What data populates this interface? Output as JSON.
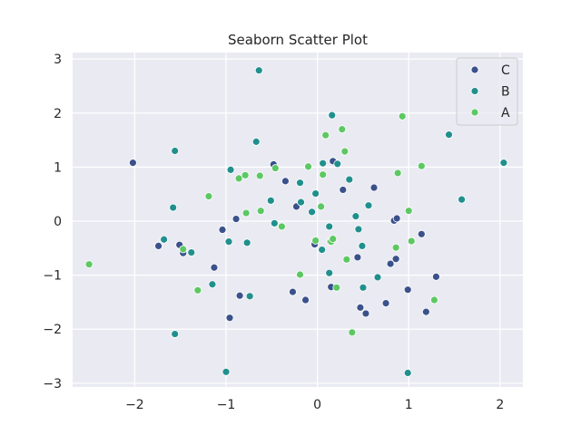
{
  "chart_data": {
    "type": "scatter",
    "title": "Seaborn Scatter Plot",
    "xlabel": "",
    "ylabel": "",
    "xlim": [
      -2.68,
      2.25
    ],
    "ylim": [
      -3.07,
      3.12
    ],
    "xticks": [
      -2,
      -1,
      0,
      1,
      2
    ],
    "yticks": [
      -3,
      -2,
      -1,
      0,
      1,
      2,
      3
    ],
    "xtick_labels": [
      "−2",
      "−1",
      "0",
      "1",
      "2"
    ],
    "ytick_labels": [
      "−3",
      "−2",
      "−1",
      "0",
      "1",
      "2",
      "3"
    ],
    "grid": true,
    "legend_position": "top-right",
    "series": [
      {
        "name": "C",
        "color": "#3b518b",
        "points": [
          [
            -2.02,
            1.08
          ],
          [
            -1.74,
            -0.46
          ],
          [
            -1.51,
            -0.44
          ],
          [
            -1.47,
            -0.59
          ],
          [
            -1.13,
            -0.86
          ],
          [
            -1.04,
            -0.16
          ],
          [
            -0.96,
            -1.79
          ],
          [
            -0.89,
            0.04
          ],
          [
            -0.85,
            -1.38
          ],
          [
            -0.48,
            1.05
          ],
          [
            -0.35,
            0.74
          ],
          [
            -0.27,
            -1.31
          ],
          [
            -0.23,
            0.27
          ],
          [
            -0.13,
            -1.46
          ],
          [
            -0.03,
            -0.43
          ],
          [
            0.14,
            -0.38
          ],
          [
            0.15,
            -1.22
          ],
          [
            0.17,
            1.11
          ],
          [
            0.28,
            0.58
          ],
          [
            0.44,
            -0.67
          ],
          [
            0.47,
            -1.6
          ],
          [
            0.53,
            -1.71
          ],
          [
            0.62,
            0.62
          ],
          [
            0.75,
            -1.52
          ],
          [
            0.8,
            -0.79
          ],
          [
            0.84,
            0.01
          ],
          [
            0.86,
            -0.7
          ],
          [
            0.87,
            0.05
          ],
          [
            0.99,
            -1.27
          ],
          [
            1.14,
            -0.24
          ],
          [
            1.19,
            -1.68
          ],
          [
            1.3,
            -1.03
          ]
        ]
      },
      {
        "name": "B",
        "color": "#21908d",
        "points": [
          [
            -1.68,
            -0.34
          ],
          [
            -1.58,
            0.25
          ],
          [
            -1.56,
            1.3
          ],
          [
            -1.56,
            -2.09
          ],
          [
            -1.38,
            -0.58
          ],
          [
            -1.15,
            -1.17
          ],
          [
            -1.0,
            -2.79
          ],
          [
            -0.97,
            -0.38
          ],
          [
            -0.95,
            0.95
          ],
          [
            -0.77,
            -0.4
          ],
          [
            -0.74,
            -1.39
          ],
          [
            -0.67,
            1.47
          ],
          [
            -0.64,
            2.79
          ],
          [
            -0.51,
            0.38
          ],
          [
            -0.47,
            -0.04
          ],
          [
            -0.19,
            0.71
          ],
          [
            -0.18,
            0.35
          ],
          [
            -0.06,
            0.17
          ],
          [
            -0.02,
            0.51
          ],
          [
            0.05,
            -0.53
          ],
          [
            0.06,
            1.07
          ],
          [
            0.13,
            -0.1
          ],
          [
            0.13,
            -0.96
          ],
          [
            0.16,
            1.96
          ],
          [
            0.22,
            1.06
          ],
          [
            0.35,
            0.77
          ],
          [
            0.42,
            0.09
          ],
          [
            0.45,
            -0.15
          ],
          [
            0.49,
            -0.46
          ],
          [
            0.5,
            -1.23
          ],
          [
            0.56,
            0.29
          ],
          [
            0.66,
            -1.04
          ],
          [
            0.99,
            -2.81
          ],
          [
            1.44,
            1.6
          ],
          [
            1.58,
            0.4
          ],
          [
            2.04,
            1.08
          ]
        ]
      },
      {
        "name": "A",
        "color": "#5dc863",
        "points": [
          [
            -2.5,
            -0.8
          ],
          [
            -1.47,
            -0.52
          ],
          [
            -1.31,
            -1.28
          ],
          [
            -1.19,
            0.46
          ],
          [
            -0.86,
            0.79
          ],
          [
            -0.79,
            0.85
          ],
          [
            -0.78,
            0.15
          ],
          [
            -0.63,
            0.84
          ],
          [
            -0.62,
            0.19
          ],
          [
            -0.46,
            0.98
          ],
          [
            -0.39,
            -0.1
          ],
          [
            -0.19,
            -0.99
          ],
          [
            -0.1,
            1.01
          ],
          [
            -0.02,
            -0.36
          ],
          [
            0.04,
            0.27
          ],
          [
            0.06,
            0.86
          ],
          [
            0.09,
            1.59
          ],
          [
            0.15,
            -0.38
          ],
          [
            0.17,
            -0.33
          ],
          [
            0.21,
            -1.23
          ],
          [
            0.27,
            1.7
          ],
          [
            0.3,
            1.29
          ],
          [
            0.32,
            -0.71
          ],
          [
            0.38,
            -2.06
          ],
          [
            0.86,
            -0.49
          ],
          [
            0.88,
            0.89
          ],
          [
            0.93,
            1.94
          ],
          [
            1.0,
            0.19
          ],
          [
            1.03,
            -0.37
          ],
          [
            1.14,
            1.02
          ],
          [
            1.28,
            -1.46
          ]
        ]
      }
    ]
  }
}
